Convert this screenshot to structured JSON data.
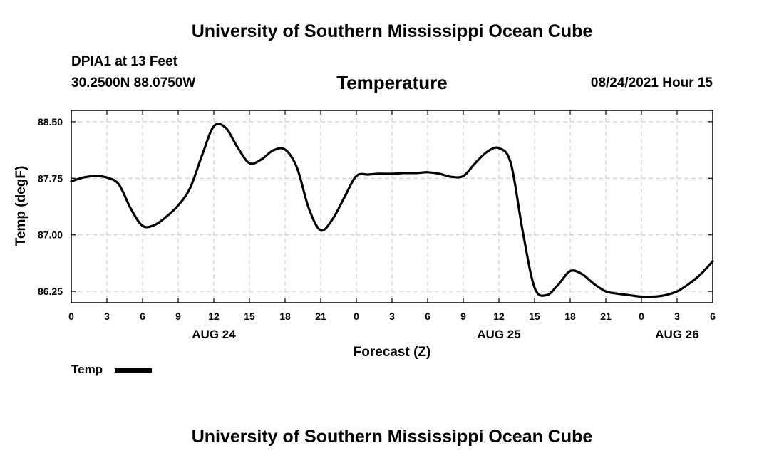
{
  "header": {
    "top_title": "University of Southern Mississippi Ocean Cube",
    "bottom_title": "University of Southern Mississippi Ocean Cube",
    "station": "DPIA1 at 13 Feet",
    "coordinates": "30.2500N  88.0750W",
    "datetime": "08/24/2021 Hour 15"
  },
  "legend": {
    "label": "Temp"
  },
  "colors": {
    "line": "#000000",
    "grid": "#c8c8c8",
    "axis": "#000000",
    "background": "#ffffff"
  },
  "chart_data": {
    "type": "line",
    "title": "Temperature",
    "xlabel": "Forecast (Z)",
    "ylabel": "Temp (degF)",
    "xlim": [
      0,
      54
    ],
    "ylim": [
      86.1,
      88.65
    ],
    "grid": true,
    "legend_position": "bottom-left",
    "xticks": [
      0,
      3,
      6,
      9,
      12,
      15,
      18,
      21,
      24,
      27,
      30,
      33,
      36,
      39,
      42,
      45,
      48,
      51,
      54
    ],
    "xtick_labels": [
      "0",
      "3",
      "6",
      "9",
      "12",
      "15",
      "18",
      "21",
      "0",
      "3",
      "6",
      "9",
      "12",
      "15",
      "18",
      "21",
      "0",
      "3",
      "6"
    ],
    "yticks": [
      86.25,
      87.0,
      87.75,
      88.5
    ],
    "ytick_labels": [
      "86.25",
      "87.00",
      "87.75",
      "88.50"
    ],
    "date_labels": [
      {
        "x": 12,
        "label": "AUG 24"
      },
      {
        "x": 36,
        "label": "AUG 25"
      },
      {
        "x": 51,
        "label": "AUG 26"
      }
    ],
    "series": [
      {
        "name": "Temp",
        "x": [
          0,
          1,
          2,
          3,
          4,
          5,
          6,
          7,
          8,
          9,
          10,
          11,
          12,
          13,
          14,
          15,
          16,
          17,
          18,
          19,
          20,
          21,
          22,
          23,
          24,
          25,
          26,
          27,
          28,
          29,
          30,
          31,
          32,
          33,
          34,
          35,
          36,
          37,
          38,
          39,
          40,
          41,
          42,
          43,
          44,
          45,
          46,
          47,
          48,
          49,
          50,
          51,
          52,
          53,
          54
        ],
        "y": [
          87.71,
          87.76,
          87.78,
          87.76,
          87.67,
          87.35,
          87.12,
          87.13,
          87.24,
          87.39,
          87.62,
          88.05,
          88.44,
          88.42,
          88.16,
          87.95,
          88.0,
          88.12,
          88.13,
          87.89,
          87.35,
          87.06,
          87.21,
          87.5,
          87.78,
          87.8,
          87.81,
          87.81,
          87.82,
          87.82,
          87.83,
          87.81,
          87.77,
          87.78,
          87.95,
          88.1,
          88.15,
          87.95,
          87.05,
          86.3,
          86.2,
          86.34,
          86.52,
          86.48,
          86.35,
          86.25,
          86.22,
          86.2,
          86.18,
          86.18,
          86.2,
          86.25,
          86.35,
          86.48,
          86.65
        ]
      }
    ]
  }
}
